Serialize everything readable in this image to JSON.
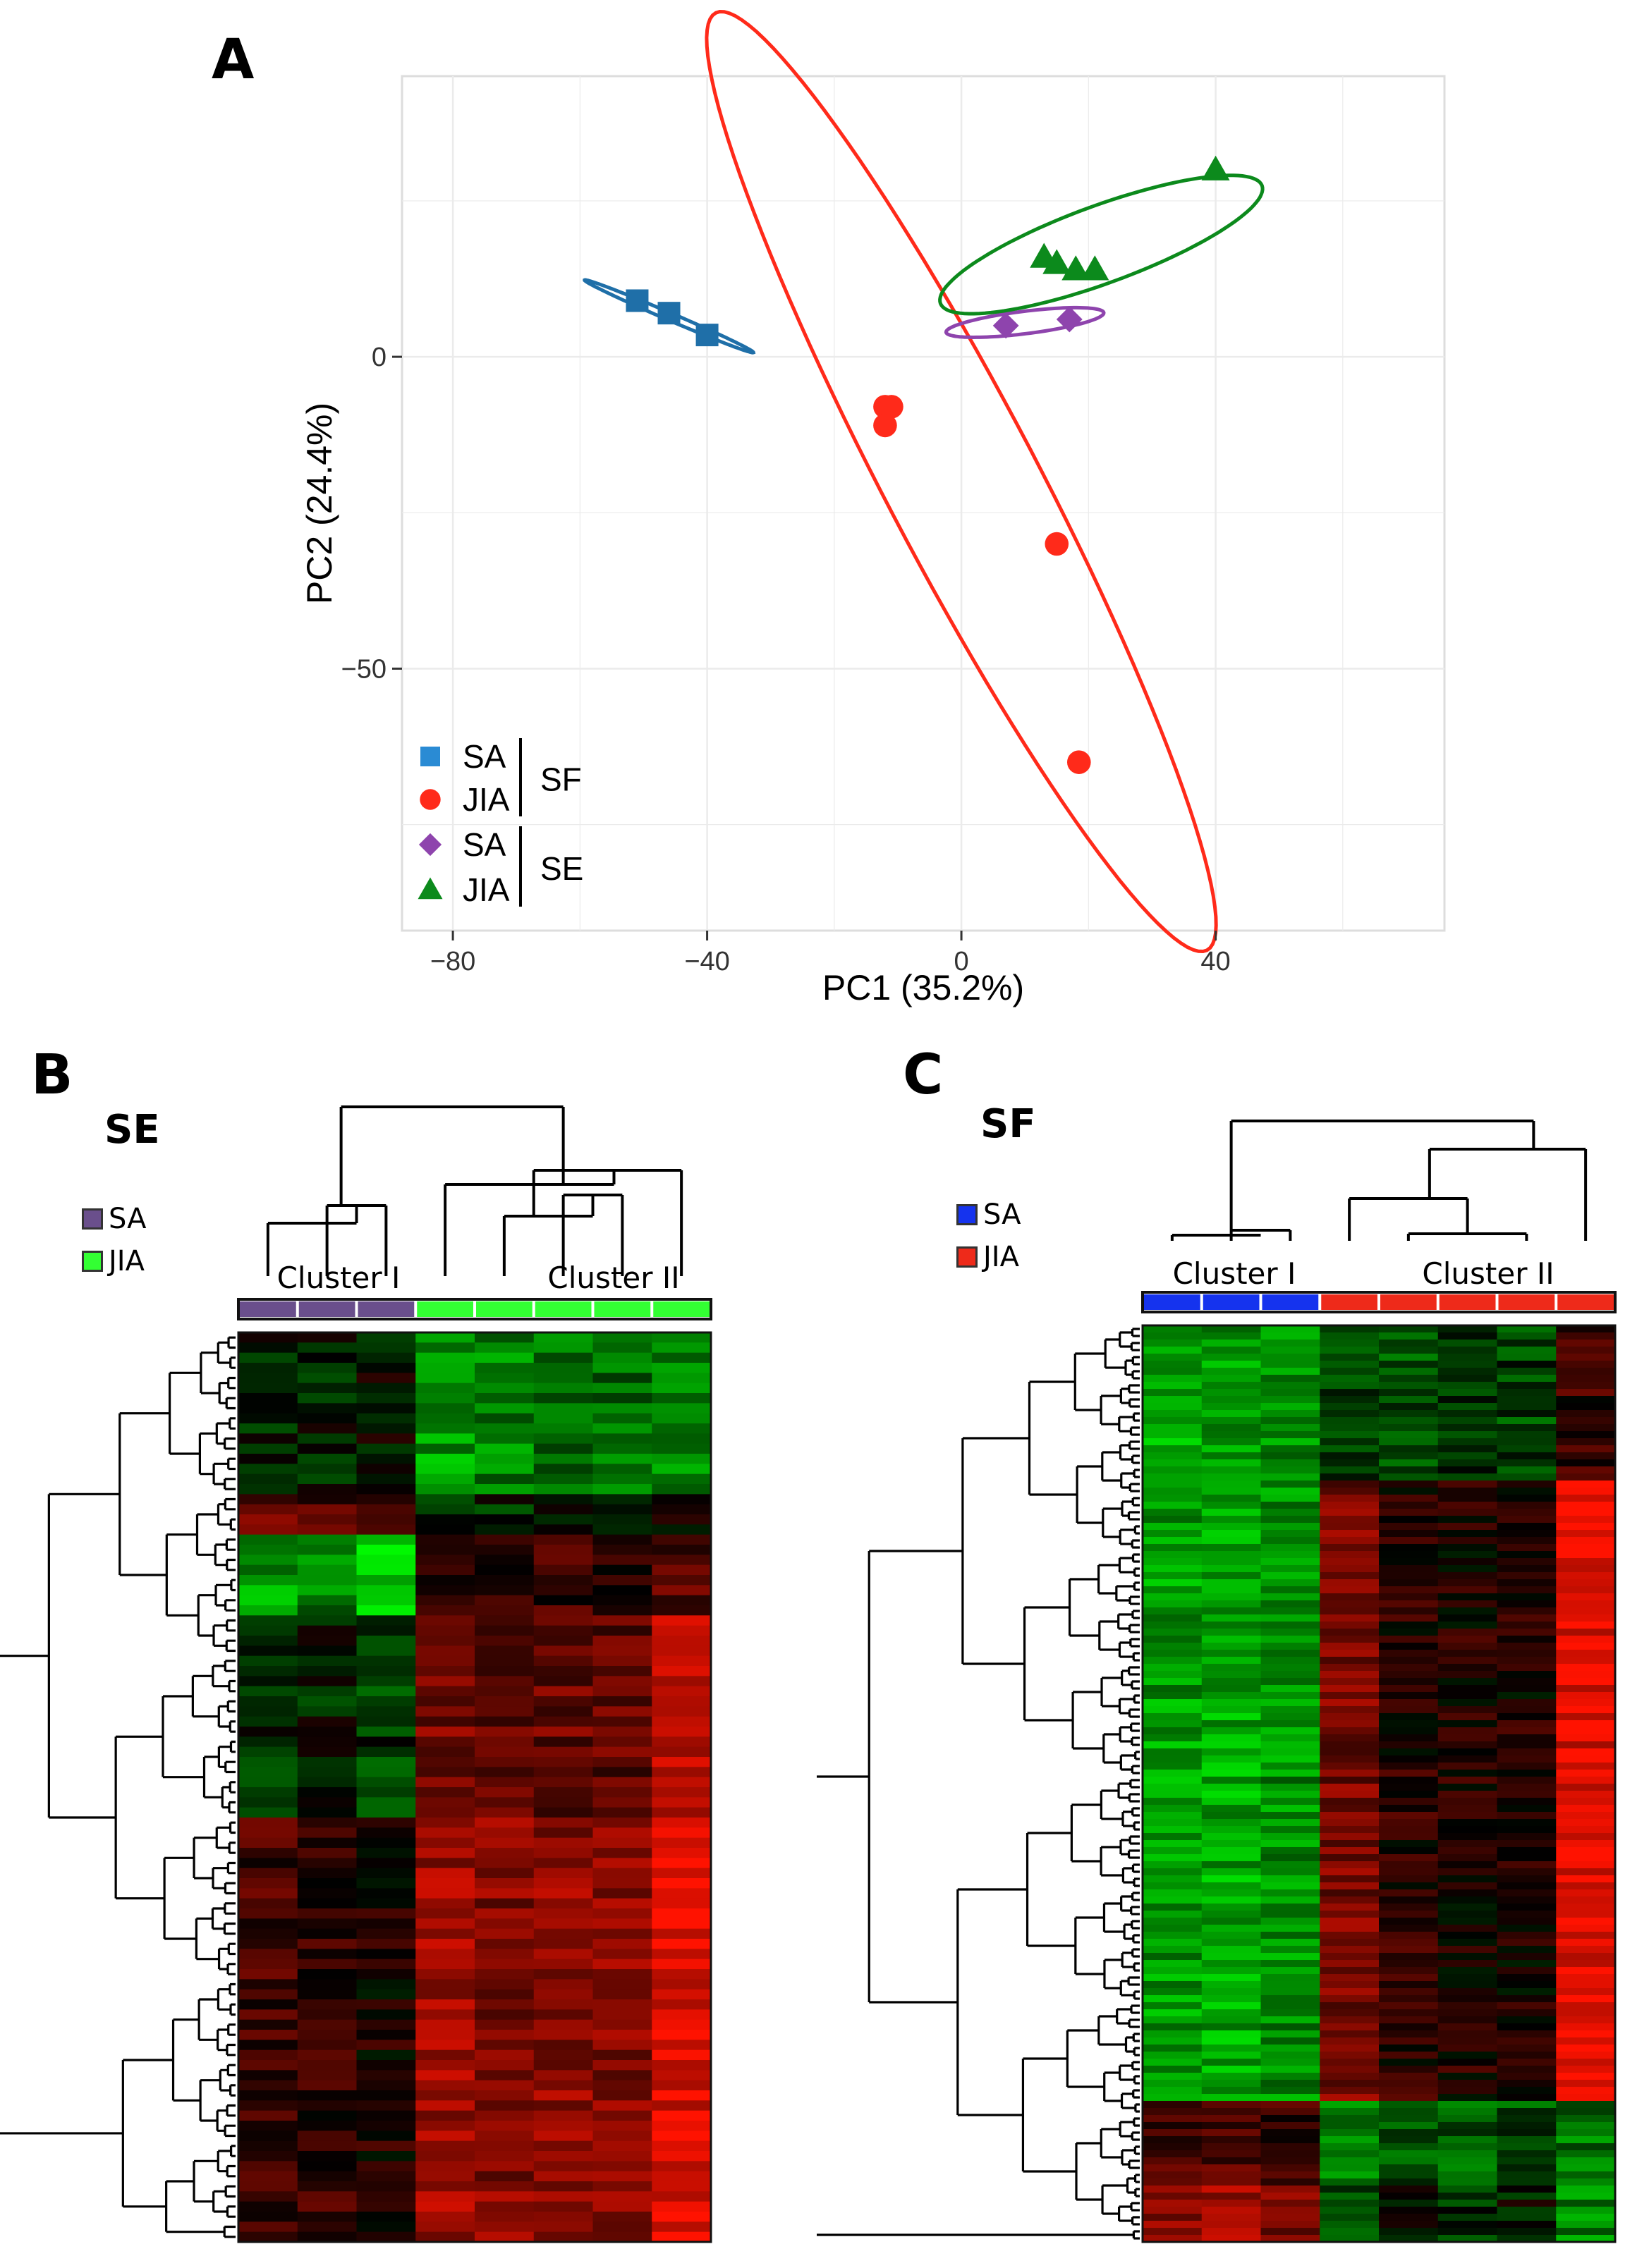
{
  "panels": {
    "a": "A",
    "b": "B",
    "c": "C"
  },
  "chart_data": [
    {
      "type": "scatter",
      "panel": "A",
      "xlabel": "PC1 (35.2%)",
      "ylabel": "PC2 (24.4%)",
      "xlim": [
        -88,
        76
      ],
      "ylim": [
        -92,
        45
      ],
      "xticks": [
        -80,
        -40,
        0,
        40
      ],
      "yticks": [
        0,
        -50
      ],
      "xtick_labels": [
        "−80",
        "−40",
        "0",
        "40"
      ],
      "ytick_labels": [
        "0",
        "−50"
      ],
      "grid": true,
      "legend": {
        "placement": "bottom-left",
        "groups": [
          {
            "bracket": "SF",
            "items": [
              {
                "label": "SA",
                "series": 0
              },
              {
                "label": "JIA",
                "series": 1
              }
            ]
          },
          {
            "bracket": "SE",
            "items": [
              {
                "label": "SA",
                "series": 2
              },
              {
                "label": "JIA",
                "series": 3
              }
            ]
          }
        ]
      },
      "series": [
        {
          "color": "#1f6fa8",
          "legend_color": "#2a8bd4",
          "marker": "square",
          "x": [
            -51,
            -46,
            -40
          ],
          "y": [
            9,
            7,
            3.5
          ],
          "ellipse": {
            "cx": -46,
            "cy": 6.5,
            "rx": 14.5,
            "ry": 0.6,
            "angle_deg": -23.6
          }
        },
        {
          "color": "#ff2a1a",
          "legend_color": "#ff2a1a",
          "marker": "circle",
          "x": [
            -12,
            -11,
            -12,
            15,
            18.5
          ],
          "y": [
            -8,
            -8,
            -11,
            -30,
            -65
          ],
          "ellipse": {
            "cx": 0,
            "cy": -20,
            "rx": 84.5,
            "ry": 12,
            "angle_deg": -62.8
          }
        },
        {
          "color": "#8e44ad",
          "legend_color": "#8e44ad",
          "marker": "diamond",
          "x": [
            7,
            17
          ],
          "y": [
            5,
            6
          ],
          "ellipse": {
            "cx": 10,
            "cy": 5.5,
            "rx": 12.5,
            "ry": 1.8,
            "angle_deg": 7.2
          }
        },
        {
          "color": "#0c8a1c",
          "legend_color": "#0c8a1c",
          "marker": "triangle",
          "x": [
            13,
            15,
            18,
            21,
            40
          ],
          "y": [
            16,
            15,
            14,
            14,
            30
          ],
          "ellipse": {
            "cx": 22,
            "cy": 18,
            "rx": 27,
            "ry": 6.2,
            "angle_deg": 20.5
          }
        }
      ]
    },
    {
      "type": "heatmap",
      "panel": "B",
      "title": "SE",
      "legend": [
        {
          "label": "SA",
          "color": "#6a4f8c"
        },
        {
          "label": "JIA",
          "color": "#33ff33"
        }
      ],
      "clusters": [
        {
          "label": "Cluster I",
          "columns": [
            0,
            1,
            2
          ]
        },
        {
          "label": "Cluster II",
          "columns": [
            3,
            4,
            5,
            6,
            7
          ]
        }
      ],
      "column_groups": [
        "SA",
        "SA",
        "SA",
        "JIA",
        "JIA",
        "JIA",
        "JIA",
        "JIA"
      ],
      "rows": 90,
      "blocks": [
        {
          "rows": [
            0,
            16
          ],
          "values": [
            -0.1,
            -0.1,
            -0.05,
            -0.6,
            -0.5,
            -0.45,
            -0.4,
            -0.5
          ]
        },
        {
          "rows": [
            16,
            20
          ],
          "values": [
            0.4,
            0.3,
            0.3,
            -0.2,
            -0.15,
            -0.1,
            -0.1,
            0.1
          ]
        },
        {
          "rows": [
            20,
            28
          ],
          "values": [
            -0.6,
            -0.5,
            -0.75,
            0.2,
            0.15,
            0.2,
            0.1,
            0.3
          ]
        },
        {
          "rows": [
            28,
            48
          ],
          "values": [
            -0.15,
            -0.1,
            -0.2,
            0.45,
            0.4,
            0.4,
            0.35,
            0.7
          ]
        },
        {
          "rows": [
            48,
            90
          ],
          "values": [
            0.25,
            0.2,
            0.1,
            0.6,
            0.5,
            0.55,
            0.5,
            0.85
          ]
        }
      ]
    },
    {
      "type": "heatmap",
      "panel": "C",
      "title": "SF",
      "legend": [
        {
          "label": "SA",
          "color": "#1533ee"
        },
        {
          "label": "JIA",
          "color": "#ee2a1a"
        }
      ],
      "clusters": [
        {
          "label": "Cluster I",
          "columns": [
            0,
            1,
            2
          ]
        },
        {
          "label": "Cluster II",
          "columns": [
            3,
            4,
            5,
            6,
            7
          ]
        }
      ],
      "column_groups": [
        "SA",
        "SA",
        "SA",
        "JIA",
        "JIA",
        "JIA",
        "JIA",
        "JIA"
      ],
      "rows": 130,
      "blocks": [
        {
          "rows": [
            0,
            22
          ],
          "values": [
            -0.65,
            -0.6,
            -0.55,
            -0.25,
            -0.3,
            -0.2,
            -0.25,
            0.2
          ]
        },
        {
          "rows": [
            22,
            110
          ],
          "values": [
            -0.6,
            -0.65,
            -0.55,
            0.45,
            0.15,
            0.1,
            0.1,
            0.85
          ]
        },
        {
          "rows": [
            110,
            122
          ],
          "values": [
            0.25,
            0.3,
            0.2,
            -0.5,
            -0.3,
            -0.35,
            -0.3,
            -0.45
          ]
        },
        {
          "rows": [
            122,
            130
          ],
          "values": [
            0.55,
            0.6,
            0.5,
            -0.35,
            -0.1,
            -0.15,
            -0.05,
            -0.5
          ]
        }
      ]
    }
  ]
}
